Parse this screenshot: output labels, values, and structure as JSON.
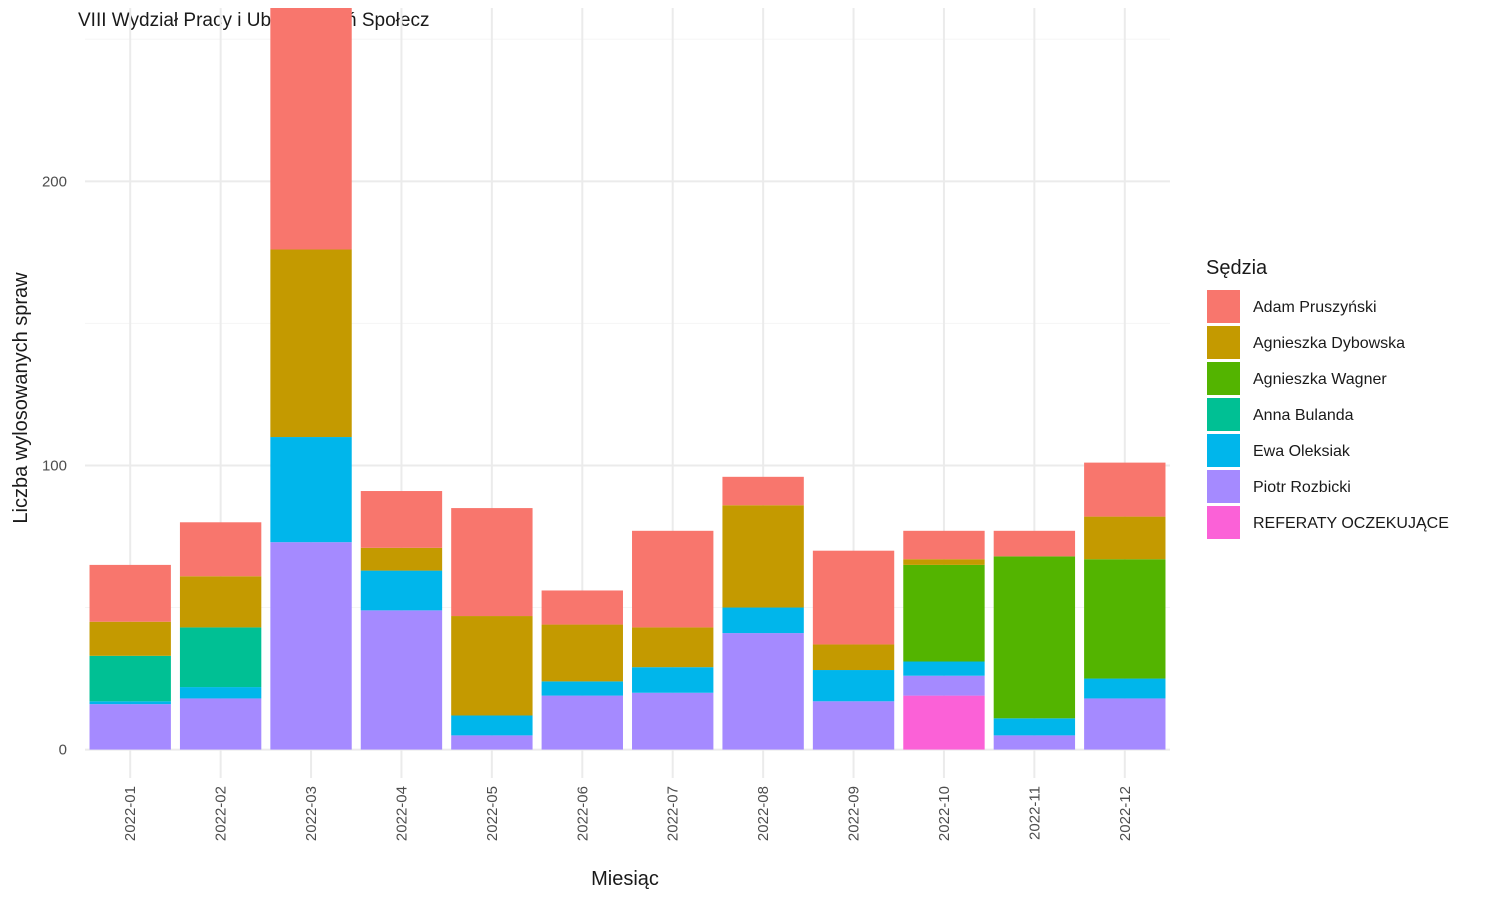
{
  "chart_data": {
    "type": "bar",
    "stacked": true,
    "title": "VIII Wydział Pracy i Ubezpieczeń Społecz",
    "xlabel": "Miesiąc",
    "ylabel": "Liczba wylosowanych spraw",
    "ylim": [
      -10,
      261
    ],
    "yticks": [
      0,
      100,
      200
    ],
    "grid": true,
    "legend_title": "Sędzia",
    "legend_position": "right",
    "categories": [
      "2022-01",
      "2022-02",
      "2022-03",
      "2022-04",
      "2022-05",
      "2022-06",
      "2022-07",
      "2022-08",
      "2022-09",
      "2022-10",
      "2022-11",
      "2022-12"
    ],
    "series": [
      {
        "name": "Adam Pruszyński",
        "color": "#F8766D",
        "values": [
          20,
          19,
          85,
          20,
          38,
          12,
          34,
          10,
          33,
          10,
          9,
          19
        ]
      },
      {
        "name": "Agnieszka Dybowska",
        "color": "#C49A00",
        "values": [
          12,
          18,
          66,
          8,
          35,
          20,
          14,
          36,
          9,
          2,
          0,
          15
        ]
      },
      {
        "name": "Agnieszka Wagner",
        "color": "#53B400",
        "values": [
          0,
          0,
          0,
          0,
          0,
          0,
          0,
          0,
          0,
          34,
          57,
          42
        ]
      },
      {
        "name": "Anna Bulanda",
        "color": "#00C094",
        "values": [
          16,
          21,
          0,
          0,
          0,
          0,
          0,
          0,
          0,
          0,
          0,
          0
        ]
      },
      {
        "name": "Ewa Oleksiak",
        "color": "#00B6EB",
        "values": [
          1,
          4,
          37,
          14,
          7,
          5,
          9,
          9,
          11,
          5,
          6,
          7
        ]
      },
      {
        "name": "Piotr Rozbicki",
        "color": "#A58AFF",
        "values": [
          16,
          18,
          73,
          49,
          5,
          19,
          20,
          41,
          17,
          7,
          5,
          18
        ]
      },
      {
        "name": "REFERATY OCZEKUJĄCE",
        "color": "#FB61D7",
        "values": [
          0,
          0,
          0,
          0,
          0,
          0,
          0,
          0,
          0,
          19,
          0,
          0
        ]
      }
    ]
  }
}
